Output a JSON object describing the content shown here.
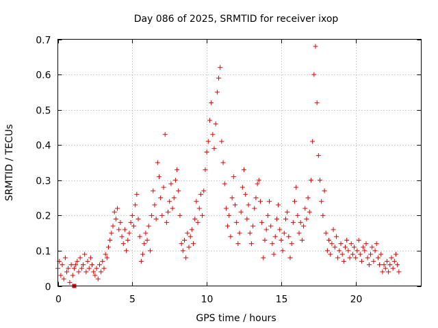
{
  "chart_data": {
    "type": "scatter",
    "title": "Day 086 of 2025, SRMTID for receiver ixop",
    "xlabel": "GPS time / hours",
    "ylabel": "SRMTID / TECUs",
    "xlim": [
      0,
      24.4
    ],
    "ylim": [
      0,
      0.7
    ],
    "x_ticks": [
      0,
      5,
      10,
      15,
      20
    ],
    "x_tick_labels": [
      "0",
      "5",
      "10",
      "15",
      "20"
    ],
    "y_ticks": [
      0,
      0.1,
      0.2,
      0.3,
      0.4,
      0.5,
      0.6,
      0.7
    ],
    "y_tick_labels": [
      "0",
      "0.1",
      "0.2",
      "0.3",
      "0.4",
      "0.5",
      "0.6",
      "0.7"
    ],
    "grid": true,
    "marker": "plus",
    "color": "#e00000",
    "square_marker": {
      "x": 1.1,
      "y": 0.0
    },
    "series": [
      {
        "name": "SRMTID",
        "points": [
          [
            0.0,
            0.05
          ],
          [
            0.1,
            0.07
          ],
          [
            0.2,
            0.03
          ],
          [
            0.3,
            0.06
          ],
          [
            0.4,
            0.02
          ],
          [
            0.5,
            0.08
          ],
          [
            0.6,
            0.04
          ],
          [
            0.7,
            0.05
          ],
          [
            0.8,
            0.01
          ],
          [
            0.9,
            0.06
          ],
          [
            1.0,
            0.03
          ],
          [
            1.1,
            0.05
          ],
          [
            1.2,
            0.06
          ],
          [
            1.3,
            0.07
          ],
          [
            1.4,
            0.04
          ],
          [
            1.5,
            0.08
          ],
          [
            1.6,
            0.05
          ],
          [
            1.7,
            0.06
          ],
          [
            1.8,
            0.09
          ],
          [
            1.9,
            0.04
          ],
          [
            2.0,
            0.07
          ],
          [
            2.1,
            0.05
          ],
          [
            2.2,
            0.08
          ],
          [
            2.3,
            0.06
          ],
          [
            2.4,
            0.04
          ],
          [
            2.5,
            0.03
          ],
          [
            2.6,
            0.05
          ],
          [
            2.7,
            0.02
          ],
          [
            2.8,
            0.06
          ],
          [
            2.9,
            0.04
          ],
          [
            3.0,
            0.07
          ],
          [
            3.1,
            0.05
          ],
          [
            3.2,
            0.09
          ],
          [
            3.3,
            0.08
          ],
          [
            3.4,
            0.11
          ],
          [
            3.5,
            0.13
          ],
          [
            3.6,
            0.15
          ],
          [
            3.7,
            0.17
          ],
          [
            3.8,
            0.21
          ],
          [
            3.9,
            0.19
          ],
          [
            4.0,
            0.22
          ],
          [
            4.1,
            0.16
          ],
          [
            4.2,
            0.18
          ],
          [
            4.3,
            0.14
          ],
          [
            4.4,
            0.12
          ],
          [
            4.5,
            0.16
          ],
          [
            4.6,
            0.1
          ],
          [
            4.7,
            0.13
          ],
          [
            4.8,
            0.15
          ],
          [
            4.9,
            0.18
          ],
          [
            5.0,
            0.2
          ],
          [
            5.1,
            0.17
          ],
          [
            5.2,
            0.23
          ],
          [
            5.3,
            0.26
          ],
          [
            5.4,
            0.19
          ],
          [
            5.5,
            0.14
          ],
          [
            5.6,
            0.07
          ],
          [
            5.7,
            0.09
          ],
          [
            5.8,
            0.12
          ],
          [
            5.9,
            0.15
          ],
          [
            6.0,
            0.13
          ],
          [
            6.1,
            0.17
          ],
          [
            6.2,
            0.1
          ],
          [
            6.3,
            0.2
          ],
          [
            6.4,
            0.27
          ],
          [
            6.5,
            0.23
          ],
          [
            6.6,
            0.19
          ],
          [
            6.7,
            0.35
          ],
          [
            6.8,
            0.31
          ],
          [
            6.9,
            0.25
          ],
          [
            7.0,
            0.2
          ],
          [
            7.1,
            0.28
          ],
          [
            7.2,
            0.43
          ],
          [
            7.3,
            0.18
          ],
          [
            7.4,
            0.21
          ],
          [
            7.5,
            0.24
          ],
          [
            7.6,
            0.29
          ],
          [
            7.7,
            0.22
          ],
          [
            7.8,
            0.25
          ],
          [
            7.9,
            0.3
          ],
          [
            8.0,
            0.33
          ],
          [
            8.1,
            0.27
          ],
          [
            8.2,
            0.2
          ],
          [
            8.3,
            0.12
          ],
          [
            8.4,
            0.1
          ],
          [
            8.5,
            0.13
          ],
          [
            8.6,
            0.08
          ],
          [
            8.7,
            0.15
          ],
          [
            8.8,
            0.11
          ],
          [
            8.9,
            0.14
          ],
          [
            9.0,
            0.16
          ],
          [
            9.1,
            0.12
          ],
          [
            9.2,
            0.19
          ],
          [
            9.3,
            0.24
          ],
          [
            9.4,
            0.18
          ],
          [
            9.5,
            0.22
          ],
          [
            9.6,
            0.26
          ],
          [
            9.7,
            0.2
          ],
          [
            9.8,
            0.27
          ],
          [
            9.9,
            0.33
          ],
          [
            10.0,
            0.38
          ],
          [
            10.1,
            0.41
          ],
          [
            10.2,
            0.47
          ],
          [
            10.3,
            0.52
          ],
          [
            10.4,
            0.43
          ],
          [
            10.5,
            0.39
          ],
          [
            10.6,
            0.46
          ],
          [
            10.7,
            0.55
          ],
          [
            10.8,
            0.59
          ],
          [
            10.9,
            0.62
          ],
          [
            11.0,
            0.41
          ],
          [
            11.1,
            0.35
          ],
          [
            11.2,
            0.29
          ],
          [
            11.3,
            0.22
          ],
          [
            11.4,
            0.17
          ],
          [
            11.5,
            0.2
          ],
          [
            11.6,
            0.14
          ],
          [
            11.7,
            0.25
          ],
          [
            11.8,
            0.31
          ],
          [
            11.9,
            0.23
          ],
          [
            12.0,
            0.18
          ],
          [
            12.1,
            0.12
          ],
          [
            12.2,
            0.15
          ],
          [
            12.3,
            0.21
          ],
          [
            12.4,
            0.28
          ],
          [
            12.5,
            0.33
          ],
          [
            12.6,
            0.26
          ],
          [
            12.7,
            0.19
          ],
          [
            12.8,
            0.23
          ],
          [
            12.9,
            0.15
          ],
          [
            13.0,
            0.12
          ],
          [
            13.1,
            0.17
          ],
          [
            13.2,
            0.22
          ],
          [
            13.3,
            0.25
          ],
          [
            13.4,
            0.29
          ],
          [
            13.5,
            0.3
          ],
          [
            13.6,
            0.24
          ],
          [
            13.7,
            0.18
          ],
          [
            13.8,
            0.08
          ],
          [
            13.9,
            0.13
          ],
          [
            14.0,
            0.16
          ],
          [
            14.1,
            0.2
          ],
          [
            14.2,
            0.24
          ],
          [
            14.3,
            0.17
          ],
          [
            14.4,
            0.12
          ],
          [
            14.5,
            0.09
          ],
          [
            14.6,
            0.14
          ],
          [
            14.7,
            0.19
          ],
          [
            14.8,
            0.23
          ],
          [
            14.9,
            0.16
          ],
          [
            15.0,
            0.13
          ],
          [
            15.1,
            0.1
          ],
          [
            15.2,
            0.15
          ],
          [
            15.3,
            0.19
          ],
          [
            15.4,
            0.21
          ],
          [
            15.5,
            0.14
          ],
          [
            15.6,
            0.08
          ],
          [
            15.7,
            0.12
          ],
          [
            15.8,
            0.18
          ],
          [
            15.9,
            0.24
          ],
          [
            16.0,
            0.28
          ],
          [
            16.1,
            0.2
          ],
          [
            16.2,
            0.15
          ],
          [
            16.3,
            0.18
          ],
          [
            16.4,
            0.13
          ],
          [
            16.5,
            0.17
          ],
          [
            16.6,
            0.22
          ],
          [
            16.7,
            0.19
          ],
          [
            16.8,
            0.25
          ],
          [
            16.9,
            0.21
          ],
          [
            17.0,
            0.3
          ],
          [
            17.1,
            0.41
          ],
          [
            17.2,
            0.6
          ],
          [
            17.3,
            0.68
          ],
          [
            17.4,
            0.52
          ],
          [
            17.5,
            0.37
          ],
          [
            17.6,
            0.3
          ],
          [
            17.7,
            0.24
          ],
          [
            17.8,
            0.2
          ],
          [
            17.9,
            0.27
          ],
          [
            18.0,
            0.15
          ],
          [
            18.1,
            0.1
          ],
          [
            18.2,
            0.13
          ],
          [
            18.3,
            0.09
          ],
          [
            18.4,
            0.12
          ],
          [
            18.5,
            0.16
          ],
          [
            18.6,
            0.11
          ],
          [
            18.7,
            0.14
          ],
          [
            18.8,
            0.08
          ],
          [
            18.9,
            0.1
          ],
          [
            19.0,
            0.12
          ],
          [
            19.1,
            0.09
          ],
          [
            19.2,
            0.07
          ],
          [
            19.3,
            0.11
          ],
          [
            19.4,
            0.13
          ],
          [
            19.5,
            0.1
          ],
          [
            19.6,
            0.08
          ],
          [
            19.7,
            0.12
          ],
          [
            19.8,
            0.09
          ],
          [
            19.9,
            0.11
          ],
          [
            20.0,
            0.08
          ],
          [
            20.1,
            0.1
          ],
          [
            20.2,
            0.13
          ],
          [
            20.3,
            0.09
          ],
          [
            20.4,
            0.07
          ],
          [
            20.5,
            0.11
          ],
          [
            20.6,
            0.1
          ],
          [
            20.7,
            0.12
          ],
          [
            20.8,
            0.08
          ],
          [
            20.9,
            0.06
          ],
          [
            21.0,
            0.09
          ],
          [
            21.1,
            0.11
          ],
          [
            21.2,
            0.07
          ],
          [
            21.3,
            0.1
          ],
          [
            21.4,
            0.12
          ],
          [
            21.5,
            0.08
          ],
          [
            21.6,
            0.06
          ],
          [
            21.7,
            0.09
          ],
          [
            21.8,
            0.04
          ],
          [
            21.9,
            0.06
          ],
          [
            22.0,
            0.05
          ],
          [
            22.1,
            0.07
          ],
          [
            22.2,
            0.04
          ],
          [
            22.3,
            0.06
          ],
          [
            22.4,
            0.08
          ],
          [
            22.5,
            0.05
          ],
          [
            22.6,
            0.07
          ],
          [
            22.7,
            0.09
          ],
          [
            22.8,
            0.06
          ],
          [
            22.9,
            0.04
          ]
        ]
      }
    ]
  }
}
